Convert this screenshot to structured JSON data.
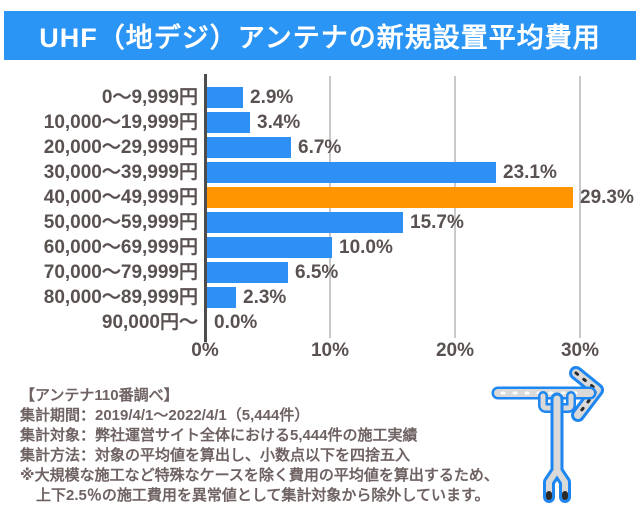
{
  "header": {
    "title": "UHF（地デジ）アンテナの新規設置平均費用"
  },
  "chart_data": {
    "type": "bar",
    "orientation": "horizontal",
    "title": "UHF（地デジ）アンテナの新規設置平均費用",
    "categories": [
      "0～9,999円",
      "10,000～19,999円",
      "20,000～29,999円",
      "30,000～39,999円",
      "40,000～49,999円",
      "50,000～59,999円",
      "60,000～69,999円",
      "70,000～79,999円",
      "80,000～89,999円",
      "90,000円～"
    ],
    "values": [
      2.9,
      3.4,
      6.7,
      23.1,
      29.3,
      15.7,
      10.0,
      6.5,
      2.3,
      0.0
    ],
    "value_labels": [
      "2.9%",
      "3.4%",
      "6.7%",
      "23.1%",
      "29.3%",
      "15.7%",
      "10.0%",
      "6.5%",
      "2.3%",
      "0.0%"
    ],
    "highlight_index": 4,
    "bar_color": "#2e90f5",
    "highlight_color": "#ff9601",
    "xlim": [
      0,
      30
    ],
    "x_ticks": [
      "0%",
      "10%",
      "20%",
      "30%"
    ],
    "grid": true,
    "legend": "none"
  },
  "footer": {
    "lines": [
      {
        "text": "【アンテナ110番調べ】",
        "indent": false
      },
      {
        "text": "集計期間：2019/4/1～2022/4/1（5,444件）",
        "indent": false
      },
      {
        "text": "集計対象：弊社運営サイト全体における5,444件の施工実績",
        "indent": false
      },
      {
        "text": "集計方法：対象の平均値を算出し、小数点以下を四捨五入",
        "indent": false
      },
      {
        "text": "※大規模な施工など特殊なケースを除く費用の平均値を算出するため、",
        "indent": false
      },
      {
        "text": "上下2.5％の施工費用を異常値として集計対象から除外しています。",
        "indent": true
      }
    ]
  },
  "illustration": {
    "name": "uhf-antenna-illustration"
  },
  "colors": {
    "banner_bg": "#2b95f5",
    "banner_text": "#ffffff",
    "bar_blue": "#2e90f5",
    "bar_orange": "#ff9601",
    "label_text": "#5a5151",
    "note_text": "#6f6262",
    "gridline": "#c9c9c9",
    "axis": "#4d4d4d"
  }
}
